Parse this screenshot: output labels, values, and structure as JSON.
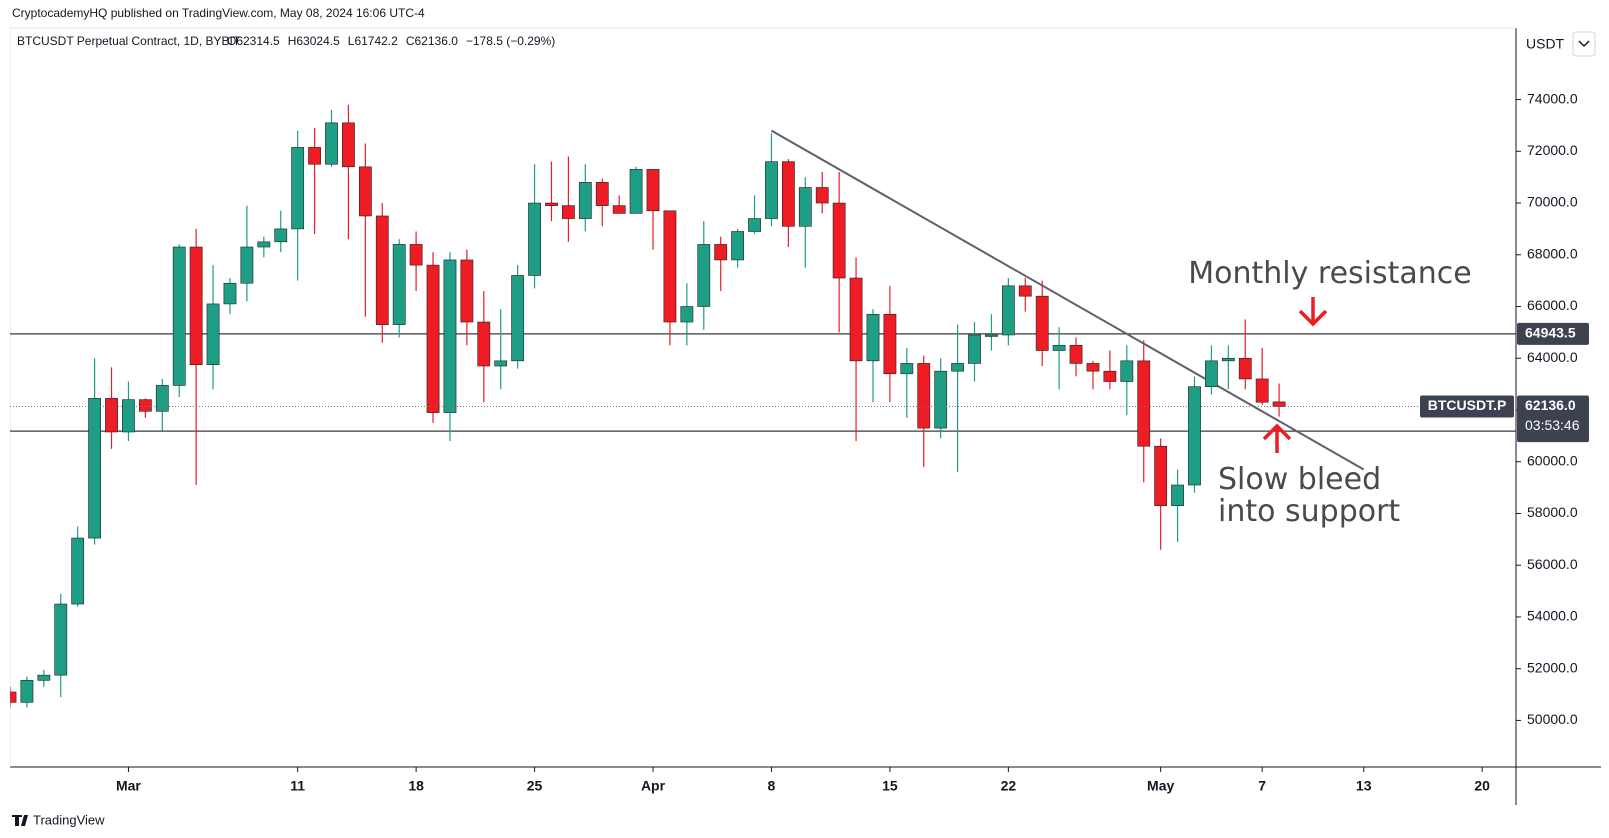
{
  "header": {
    "publisher": "CryptocademyHQ published on TradingView.com, May 08, 2024 16:06 UTC-4",
    "brand": "TradingView"
  },
  "chart_data": {
    "type": "candlestick",
    "title": "BTCUSDT Perpetual Contract, 1D, BYBIT",
    "ohlc_text": [
      "O62314.5",
      "H63024.5",
      "L61742.2",
      "C62136.0",
      "−178.5 (−0.29%)"
    ],
    "y_axis_label": "USDT",
    "up_color": "#1e9e84",
    "down_color": "#ee1c25",
    "x": [
      "2024-02-23",
      "2024-02-24",
      "2024-02-25",
      "2024-02-26",
      "2024-02-27",
      "2024-02-28",
      "2024-02-29",
      "2024-03-01",
      "2024-03-02",
      "2024-03-03",
      "2024-03-04",
      "2024-03-05",
      "2024-03-06",
      "2024-03-07",
      "2024-03-08",
      "2024-03-09",
      "2024-03-10",
      "2024-03-11",
      "2024-03-12",
      "2024-03-13",
      "2024-03-14",
      "2024-03-15",
      "2024-03-16",
      "2024-03-17",
      "2024-03-18",
      "2024-03-19",
      "2024-03-20",
      "2024-03-21",
      "2024-03-22",
      "2024-03-23",
      "2024-03-24",
      "2024-03-25",
      "2024-03-26",
      "2024-03-27",
      "2024-03-28",
      "2024-03-29",
      "2024-03-30",
      "2024-03-31",
      "2024-04-01",
      "2024-04-02",
      "2024-04-03",
      "2024-04-04",
      "2024-04-05",
      "2024-04-06",
      "2024-04-07",
      "2024-04-08",
      "2024-04-09",
      "2024-04-10",
      "2024-04-11",
      "2024-04-12",
      "2024-04-13",
      "2024-04-14",
      "2024-04-15",
      "2024-04-16",
      "2024-04-17",
      "2024-04-18",
      "2024-04-19",
      "2024-04-20",
      "2024-04-21",
      "2024-04-22",
      "2024-04-23",
      "2024-04-24",
      "2024-04-25",
      "2024-04-26",
      "2024-04-27",
      "2024-04-28",
      "2024-04-29",
      "2024-04-30",
      "2024-05-01",
      "2024-05-02",
      "2024-05-03",
      "2024-05-04",
      "2024-05-05",
      "2024-05-06",
      "2024-05-07",
      "2024-05-08"
    ],
    "open": [
      51100,
      50700,
      51550,
      51750,
      54500,
      57050,
      62450,
      61150,
      62400,
      61950,
      62950,
      68300,
      63750,
      66100,
      66900,
      68300,
      68500,
      69000,
      72150,
      71500,
      73100,
      71400,
      69500,
      65300,
      68400,
      67600,
      61900,
      67800,
      65400,
      63700,
      63900,
      67200,
      70000,
      69900,
      69400,
      70800,
      69900,
      69600,
      71300,
      69700,
      65400,
      66000,
      68400,
      67800,
      68900,
      69400,
      71600,
      69100,
      70600,
      70000,
      67100,
      63900,
      65700,
      63400,
      63800,
      61300,
      63500,
      63800,
      64900,
      64900,
      66800,
      66400,
      64300,
      64500,
      63800,
      63500,
      63100,
      63900,
      60600,
      58300,
      59100,
      62900,
      63900,
      64000,
      63200,
      62314.5
    ],
    "high": [
      51300,
      51700,
      51950,
      54900,
      57500,
      64000,
      63650,
      63100,
      62450,
      63200,
      68400,
      69000,
      67600,
      67100,
      69900,
      68700,
      69700,
      72800,
      72900,
      73600,
      73800,
      72300,
      70000,
      68600,
      68900,
      68100,
      68100,
      68200,
      66600,
      65900,
      67600,
      71500,
      71600,
      71800,
      71500,
      70950,
      70300,
      71400,
      71300,
      69700,
      66900,
      69300,
      68700,
      69000,
      70300,
      72700,
      71700,
      71000,
      71200,
      71200,
      67900,
      65900,
      66800,
      64400,
      64100,
      64000,
      65300,
      65400,
      65700,
      67100,
      67100,
      67000,
      65200,
      64800,
      63900,
      64300,
      64500,
      64700,
      60900,
      59700,
      63300,
      64500,
      64500,
      65500,
      64400,
      63024.5
    ],
    "low": [
      50500,
      50500,
      51300,
      50900,
      54400,
      56800,
      60500,
      60800,
      61700,
      61200,
      62500,
      59100,
      62800,
      65700,
      66200,
      67900,
      68100,
      67000,
      68800,
      71400,
      68600,
      65600,
      64600,
      64800,
      66600,
      61500,
      60800,
      64500,
      62300,
      62800,
      63600,
      66700,
      69300,
      68500,
      68900,
      69100,
      69600,
      69600,
      68200,
      64500,
      64500,
      65100,
      66600,
      67500,
      68800,
      69100,
      68300,
      67500,
      69600,
      65000,
      60800,
      62300,
      62300,
      61700,
      59800,
      60900,
      59600,
      63100,
      64300,
      64500,
      65800,
      63700,
      62800,
      63300,
      62800,
      62800,
      61800,
      59200,
      56600,
      56900,
      58800,
      62600,
      62800,
      62800,
      62200,
      61742.2
    ],
    "close": [
      50700,
      51550,
      51750,
      54500,
      57050,
      62450,
      61150,
      62400,
      61950,
      62950,
      68300,
      63750,
      66100,
      66900,
      68300,
      68500,
      69000,
      72150,
      71500,
      73100,
      71400,
      69500,
      65300,
      68400,
      67600,
      61900,
      67800,
      65400,
      63700,
      63900,
      67200,
      70000,
      69900,
      69400,
      70800,
      69900,
      69600,
      71300,
      69700,
      65400,
      66000,
      68400,
      67800,
      68900,
      69400,
      71600,
      69100,
      70600,
      70000,
      67100,
      63900,
      65700,
      63400,
      63800,
      61300,
      63500,
      63800,
      64900,
      64900,
      66800,
      66400,
      64300,
      64500,
      63800,
      63500,
      63100,
      63900,
      60600,
      58300,
      59100,
      62900,
      63900,
      64000,
      63200,
      62300,
      62136.0
    ],
    "xlim": [
      "2024-02-23",
      "2024-05-22"
    ],
    "xticks": [
      {
        "value": "2024-03-01",
        "label": "Mar"
      },
      {
        "value": "2024-03-11",
        "label": "11"
      },
      {
        "value": "2024-03-18",
        "label": "18"
      },
      {
        "value": "2024-03-25",
        "label": "25"
      },
      {
        "value": "2024-04-01",
        "label": "Apr"
      },
      {
        "value": "2024-04-08",
        "label": "8"
      },
      {
        "value": "2024-04-15",
        "label": "15"
      },
      {
        "value": "2024-04-22",
        "label": "22"
      },
      {
        "value": "2024-05-01",
        "label": "May"
      },
      {
        "value": "2024-05-07",
        "label": "7"
      },
      {
        "value": "2024-05-13",
        "label": "13"
      },
      {
        "value": "2024-05-20",
        "label": "20"
      }
    ],
    "ylim": [
      48200,
      76650
    ],
    "yticks": [
      {
        "value": 50000,
        "label": "50000.0"
      },
      {
        "value": 52000,
        "label": "52000.0"
      },
      {
        "value": 54000,
        "label": "54000.0"
      },
      {
        "value": 56000,
        "label": "56000.0"
      },
      {
        "value": 58000,
        "label": "58000.0"
      },
      {
        "value": 60000,
        "label": "60000.0"
      },
      {
        "value": 62000,
        "label": "62000.0"
      },
      {
        "value": 64000,
        "label": "64000.0"
      },
      {
        "value": 66000,
        "label": "66000.0"
      },
      {
        "value": 68000,
        "label": "68000.0"
      },
      {
        "value": 70000,
        "label": "70000.0"
      },
      {
        "value": 72000,
        "label": "72000.0"
      },
      {
        "value": 74000,
        "label": "74000.0"
      }
    ],
    "hlines": [
      64943.5,
      61184.1
    ],
    "last_price": {
      "value": 62136.0,
      "label": "62136.0",
      "name": "BTCUSDT.P",
      "countdown": "03:53:46"
    },
    "trendline": {
      "x": [
        "2024-04-08",
        "2024-05-13"
      ],
      "values": [
        72800,
        59700
      ]
    },
    "annotations": [
      "Monthly resistance",
      "Slow bleed",
      "into support"
    ]
  }
}
